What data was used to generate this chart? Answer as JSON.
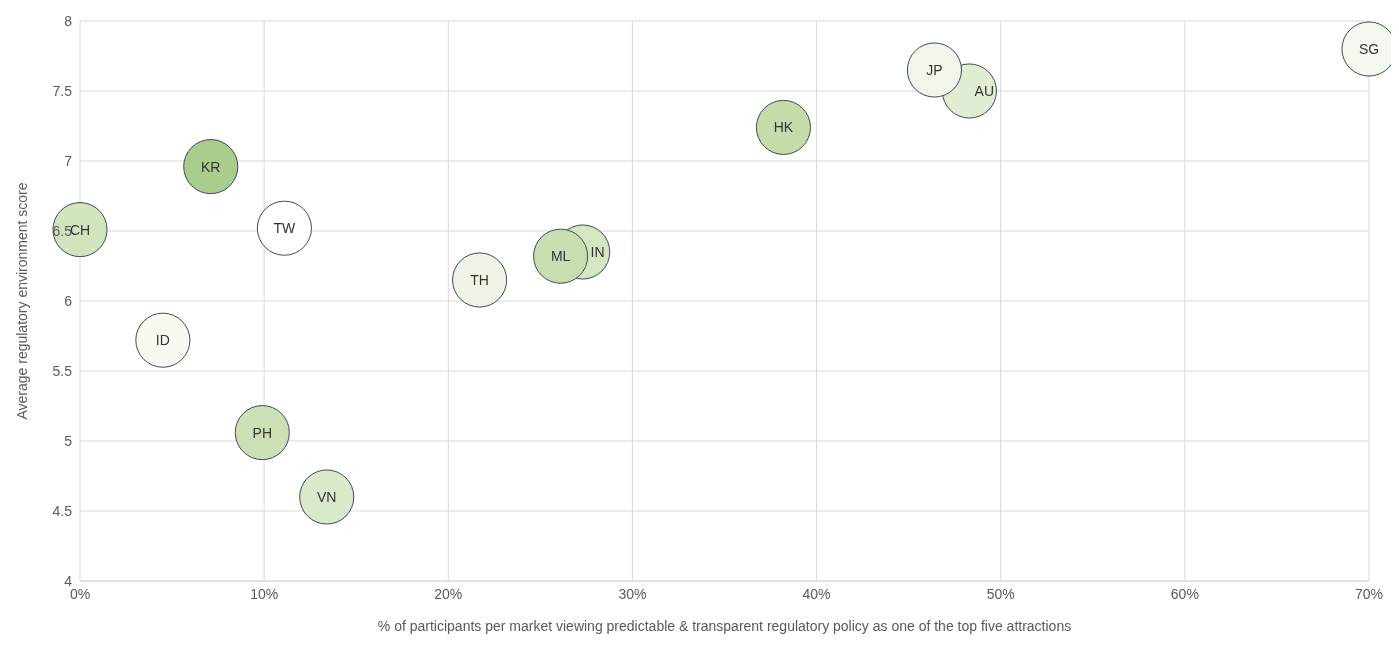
{
  "chart_data": {
    "type": "bubble",
    "xlabel": "% of participants per market viewing predictable & transparent regulatory policy as one of the top five attractions",
    "ylabel": "Average regulatory environment score",
    "xlim": [
      0,
      70
    ],
    "xticks": [
      {
        "value": 0,
        "label": "0%"
      },
      {
        "value": 10,
        "label": "10%"
      },
      {
        "value": 20,
        "label": "20%"
      },
      {
        "value": 30,
        "label": "30%"
      },
      {
        "value": 40,
        "label": "40%"
      },
      {
        "value": 50,
        "label": "50%"
      },
      {
        "value": 60,
        "label": "60%"
      },
      {
        "value": 70,
        "label": "70%"
      }
    ],
    "ylim": [
      4,
      8
    ],
    "yticks": [
      4,
      4.5,
      5,
      5.5,
      6,
      6.5,
      7,
      7.5,
      8
    ],
    "grid": true,
    "legend": false,
    "series": [
      {
        "name": "CH",
        "color": "#d2e4bd",
        "x": [
          0
        ],
        "values": [
          6.51
        ],
        "sizes": [
          1
        ]
      },
      {
        "name": "ID",
        "color": "#f6faf1",
        "x": [
          4.5
        ],
        "values": [
          5.72
        ],
        "sizes": [
          1
        ]
      },
      {
        "name": "KR",
        "color": "#a9cd8c",
        "x": [
          7.1
        ],
        "values": [
          6.96
        ],
        "sizes": [
          1
        ]
      },
      {
        "name": "PH",
        "color": "#cde0b5",
        "x": [
          9.9
        ],
        "values": [
          5.06
        ],
        "sizes": [
          1
        ]
      },
      {
        "name": "TW",
        "color": "#ffffff",
        "x": [
          11.1
        ],
        "values": [
          6.52
        ],
        "sizes": [
          1
        ]
      },
      {
        "name": "VN",
        "color": "#dbe9cb",
        "x": [
          13.4
        ],
        "values": [
          4.6
        ],
        "sizes": [
          1
        ]
      },
      {
        "name": "TH",
        "color": "#eef5e6",
        "x": [
          21.7
        ],
        "values": [
          6.15
        ],
        "sizes": [
          1
        ]
      },
      {
        "name": "IN",
        "color": "#d5e6c2",
        "x": [
          27.3
        ],
        "values": [
          6.35
        ],
        "sizes": [
          1
        ]
      },
      {
        "name": "ML",
        "color": "#c8deb0",
        "x": [
          26.1
        ],
        "values": [
          6.32
        ],
        "sizes": [
          1
        ]
      },
      {
        "name": "HK",
        "color": "#c5dcaa",
        "x": [
          38.2
        ],
        "values": [
          7.24
        ],
        "sizes": [
          1
        ]
      },
      {
        "name": "AU",
        "color": "#e0edd2",
        "x": [
          48.3
        ],
        "values": [
          7.5
        ],
        "sizes": [
          1
        ]
      },
      {
        "name": "JP",
        "color": "#f0f6ea",
        "x": [
          46.4
        ],
        "values": [
          7.65
        ],
        "sizes": [
          1
        ]
      },
      {
        "name": "SG",
        "color": "#f4f9ef",
        "x": [
          70
        ],
        "values": [
          7.8
        ],
        "sizes": [
          1
        ]
      }
    ]
  }
}
